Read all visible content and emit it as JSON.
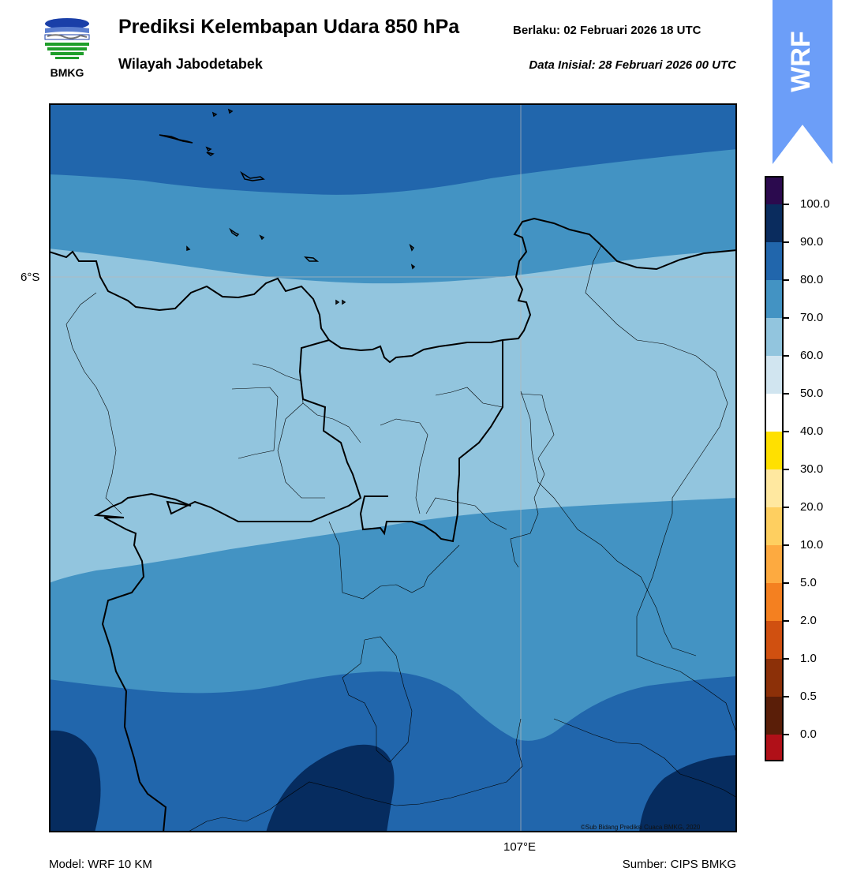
{
  "header": {
    "title": "Prediksi Kelembapan Udara 850 hPa",
    "region": "Wilayah Jabodetabek",
    "valid_label": "Berlaku:  02 Februari 2026 18 UTC",
    "init_label": "Data Inisial:  28 Februari 2026 00 UTC"
  },
  "logo": {
    "text": "BMKG",
    "icon": "bmkg-logo-icon"
  },
  "badge": {
    "text": "WRF",
    "color": "#6c9ef8"
  },
  "map": {
    "lat_tick": "6°S",
    "lon_tick": "107°E",
    "credit": "©Sub Bidang Prediksi Cuaca BMKG, 2020"
  },
  "footer": {
    "model": "Model: WRF 10 KM",
    "source": "Sumber: CIPS BMKG"
  },
  "colorbar": {
    "labels": [
      "100.0",
      "90.0",
      "80.0",
      "70.0",
      "60.0",
      "50.0",
      "40.0",
      "30.0",
      "20.0",
      "10.0",
      "5.0",
      "2.0",
      "1.0",
      "0.5",
      "0.0"
    ],
    "colors": [
      "#2b0a4e",
      "#0a2c5e",
      "#2166ac",
      "#4393c3",
      "#92c5de",
      "#d1e5f0",
      "#ffffff",
      "#ffe000",
      "#ffe8a0",
      "#fecf60",
      "#fdaa40",
      "#f48020",
      "#d05010",
      "#8c3008",
      "#5a1e08",
      "#b01018",
      "#e8403a"
    ]
  },
  "legend_levels": {
    "dark_navy": "#062c5f",
    "mid_blue": "#2166ac",
    "steel_blue": "#4393c3",
    "light_blue": "#92c5de"
  }
}
